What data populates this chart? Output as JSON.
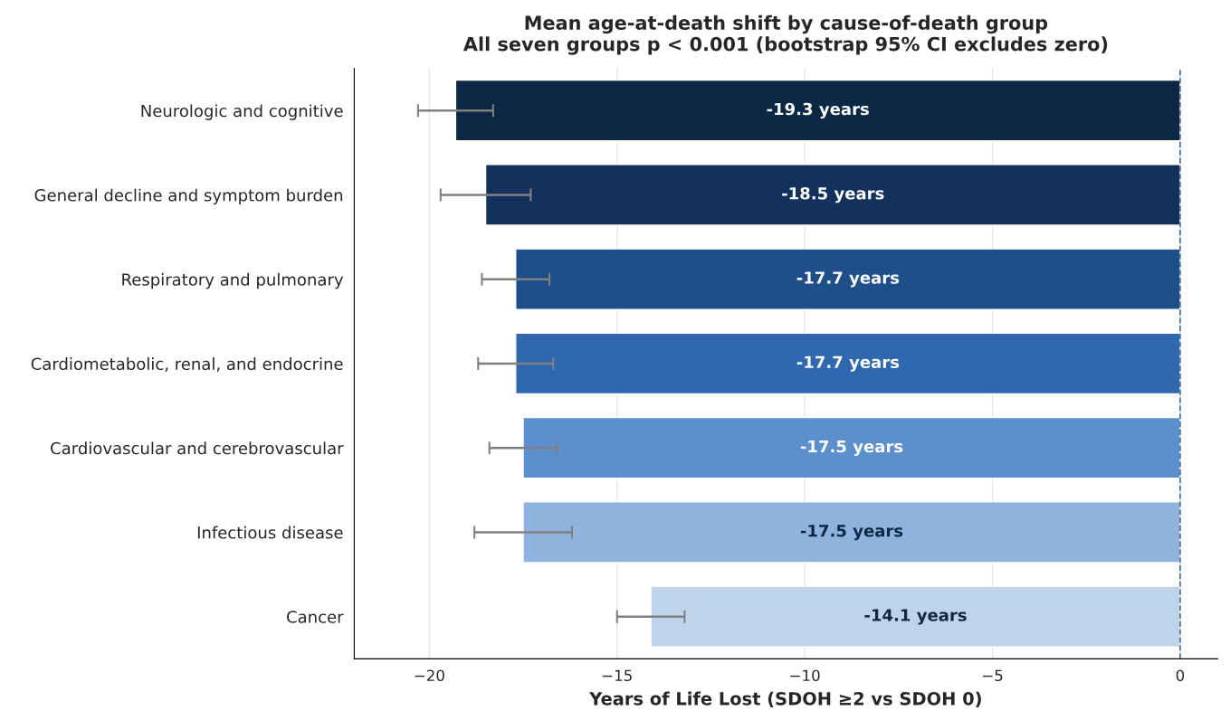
{
  "chart_data": {
    "type": "bar",
    "orientation": "horizontal",
    "title": "Mean age-at-death shift by cause-of-death group\nAll seven groups p < 0.001 (bootstrap 95% CI excludes zero)",
    "xlabel": "Years of Life Lost (SDOH ≥2 vs SDOH 0)",
    "categories": [
      "Neurologic and cognitive",
      "General decline and symptom burden",
      "Respiratory and pulmonary",
      "Cardiometabolic, renal, and endocrine",
      "Cardiovascular and cerebrovascular",
      "Infectious disease",
      "Cancer"
    ],
    "values": [
      -19.3,
      -18.5,
      -17.7,
      -17.7,
      -17.5,
      -17.5,
      -14.1
    ],
    "colors": [
      "#0c2844",
      "#14305c",
      "#1f4f8a",
      "#3068b0",
      "#5b8fce",
      "#90b3de",
      "#bfd3ea"
    ],
    "errors": [
      [
        -20.3,
        -18.3
      ],
      [
        -19.7,
        -17.3
      ],
      [
        -18.6,
        -16.8
      ],
      [
        -18.7,
        -16.7
      ],
      [
        -18.4,
        -16.6
      ],
      [
        -18.8,
        -16.2
      ],
      [
        -15.0,
        -13.2
      ]
    ],
    "value_labels": [
      "-19.3 years",
      "-18.5 years",
      "-17.7 years",
      "-17.7 years",
      "-17.5 years",
      "-17.5 years",
      "-14.1 years"
    ],
    "xlim": [
      -22,
      1
    ],
    "xticks": [
      {
        "value": -20,
        "label": "−20"
      },
      {
        "value": -15,
        "label": "−15"
      },
      {
        "value": -10,
        "label": "−10"
      },
      {
        "value": -5,
        "label": "−5"
      },
      0
    ],
    "ref_lines": [
      {
        "axis": "x",
        "value": 0,
        "color": "#4a6fa5",
        "line_style": "dashed"
      }
    ],
    "grid": "x"
  }
}
